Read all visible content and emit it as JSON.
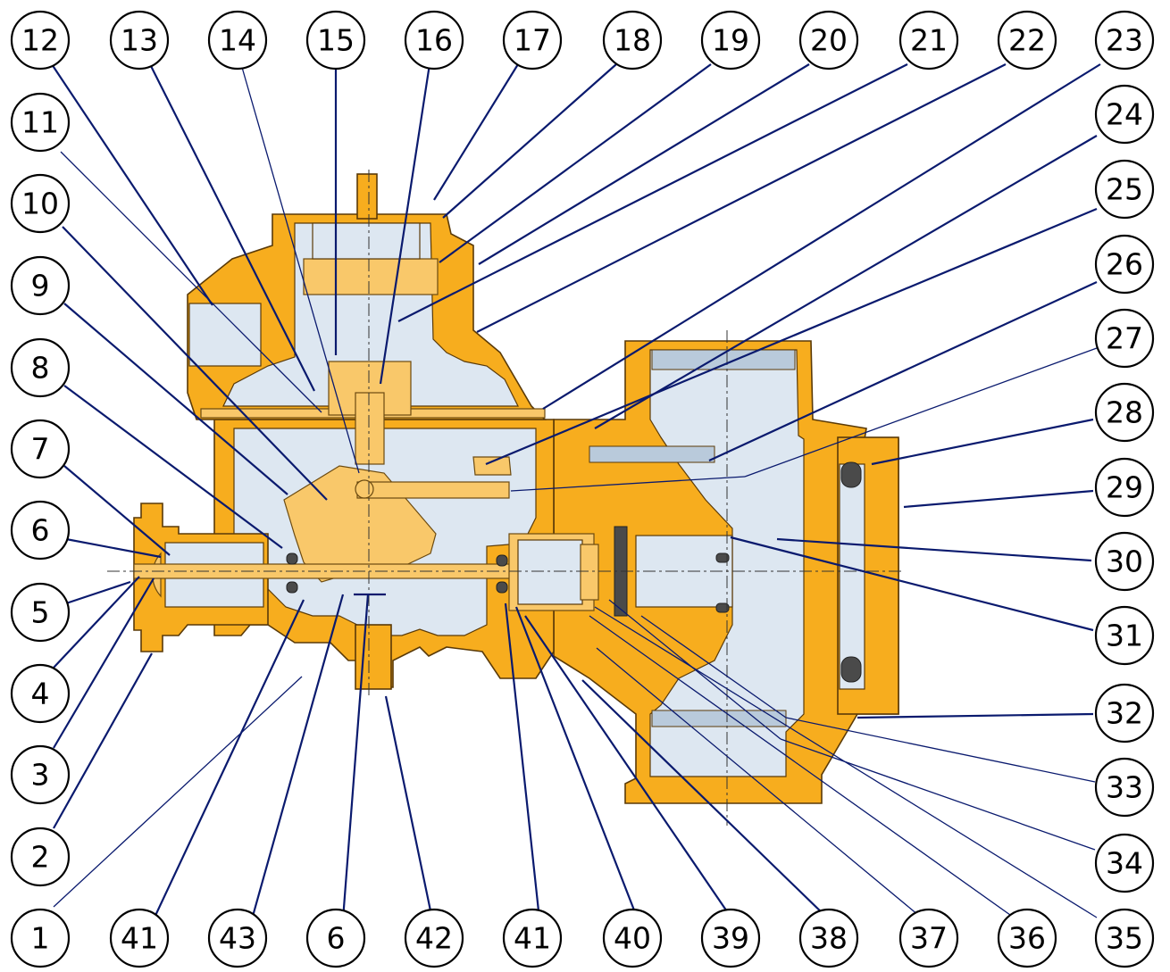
{
  "figure": {
    "description_type": "exploded cross-section callout diagram",
    "colors": {
      "housing": "#f7ad1e",
      "cavity": "#dde7f1",
      "leader_lines": "#0a1a6e",
      "callout_border": "#000000"
    }
  },
  "callouts": [
    {
      "id": "c12",
      "label": "12"
    },
    {
      "id": "c13",
      "label": "13"
    },
    {
      "id": "c14",
      "label": "14"
    },
    {
      "id": "c15",
      "label": "15"
    },
    {
      "id": "c16",
      "label": "16"
    },
    {
      "id": "c17",
      "label": "17"
    },
    {
      "id": "c18",
      "label": "18"
    },
    {
      "id": "c19",
      "label": "19"
    },
    {
      "id": "c20",
      "label": "20"
    },
    {
      "id": "c21",
      "label": "21"
    },
    {
      "id": "c22",
      "label": "22"
    },
    {
      "id": "c23",
      "label": "23"
    },
    {
      "id": "c11",
      "label": "11"
    },
    {
      "id": "c10",
      "label": "10"
    },
    {
      "id": "c9",
      "label": "9"
    },
    {
      "id": "c8",
      "label": "8"
    },
    {
      "id": "c7",
      "label": "7"
    },
    {
      "id": "c6a",
      "label": "6"
    },
    {
      "id": "c5",
      "label": "5"
    },
    {
      "id": "c4",
      "label": "4"
    },
    {
      "id": "c3",
      "label": "3"
    },
    {
      "id": "c2",
      "label": "2"
    },
    {
      "id": "c1",
      "label": "1"
    },
    {
      "id": "c24",
      "label": "24"
    },
    {
      "id": "c25",
      "label": "25"
    },
    {
      "id": "c26",
      "label": "26"
    },
    {
      "id": "c27",
      "label": "27"
    },
    {
      "id": "c28",
      "label": "28"
    },
    {
      "id": "c29",
      "label": "29"
    },
    {
      "id": "c30",
      "label": "30"
    },
    {
      "id": "c31",
      "label": "31"
    },
    {
      "id": "c32",
      "label": "32"
    },
    {
      "id": "c33",
      "label": "33"
    },
    {
      "id": "c34",
      "label": "34"
    },
    {
      "id": "c35",
      "label": "35"
    },
    {
      "id": "c41a",
      "label": "41"
    },
    {
      "id": "c43",
      "label": "43"
    },
    {
      "id": "c6b",
      "label": "6"
    },
    {
      "id": "c42",
      "label": "42"
    },
    {
      "id": "c41b",
      "label": "41"
    },
    {
      "id": "c40",
      "label": "40"
    },
    {
      "id": "c39",
      "label": "39"
    },
    {
      "id": "c38",
      "label": "38"
    },
    {
      "id": "c37",
      "label": "37"
    },
    {
      "id": "c36",
      "label": "36"
    }
  ]
}
